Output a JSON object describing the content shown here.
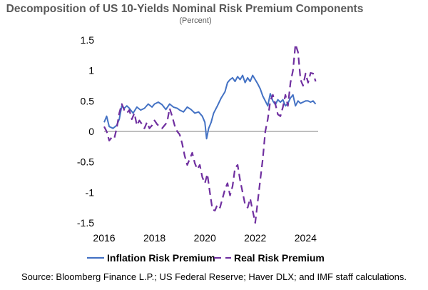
{
  "chart_data": {
    "type": "line",
    "title": "Decomposition of US 10-Yields Nominal Risk Premium Components",
    "subtitle": "(Percent)",
    "xlabel": "",
    "ylabel": "",
    "xlim": [
      2016,
      2024.5
    ],
    "ylim": [
      -1.5,
      1.5
    ],
    "x_ticks": [
      "2016",
      "2018",
      "2020",
      "2022",
      "2024"
    ],
    "y_ticks": [
      "1.5",
      "1",
      "0.5",
      "0",
      "-0.5",
      "-1",
      "-1.5"
    ],
    "grid": false,
    "legend_position": "bottom",
    "series": [
      {
        "name": "Inflation Risk Premium",
        "color": "#4472C4",
        "style": "solid",
        "x": [
          2016.0,
          2016.1,
          2016.2,
          2016.35,
          2016.5,
          2016.6,
          2016.7,
          2016.8,
          2016.9,
          2017.0,
          2017.15,
          2017.3,
          2017.45,
          2017.6,
          2017.75,
          2017.9,
          2018.0,
          2018.15,
          2018.3,
          2018.45,
          2018.6,
          2018.75,
          2018.9,
          2019.0,
          2019.15,
          2019.3,
          2019.45,
          2019.6,
          2019.75,
          2019.9,
          2020.0,
          2020.07,
          2020.15,
          2020.25,
          2020.35,
          2020.5,
          2020.65,
          2020.8,
          2020.9,
          2021.0,
          2021.1,
          2021.2,
          2021.3,
          2021.4,
          2021.5,
          2021.6,
          2021.7,
          2021.8,
          2021.9,
          2022.0,
          2022.1,
          2022.2,
          2022.3,
          2022.4,
          2022.5,
          2022.6,
          2022.7,
          2022.8,
          2022.9,
          2023.0,
          2023.1,
          2023.2,
          2023.3,
          2023.4,
          2023.5,
          2023.6,
          2023.7,
          2023.8,
          2023.9,
          2024.0,
          2024.1,
          2024.2,
          2024.3,
          2024.4
        ],
        "values": [
          0.15,
          0.25,
          0.08,
          0.05,
          0.1,
          0.2,
          0.42,
          0.38,
          0.42,
          0.38,
          0.3,
          0.4,
          0.35,
          0.38,
          0.45,
          0.4,
          0.45,
          0.48,
          0.44,
          0.36,
          0.45,
          0.4,
          0.38,
          0.35,
          0.32,
          0.4,
          0.36,
          0.3,
          0.32,
          0.25,
          0.15,
          -0.12,
          0.05,
          0.15,
          0.3,
          0.42,
          0.55,
          0.65,
          0.8,
          0.85,
          0.88,
          0.82,
          0.9,
          0.85,
          0.92,
          0.8,
          0.88,
          0.82,
          0.92,
          0.85,
          0.78,
          0.7,
          0.58,
          0.5,
          0.42,
          0.62,
          0.5,
          0.44,
          0.52,
          0.48,
          0.52,
          0.42,
          0.46,
          0.55,
          0.6,
          0.42,
          0.5,
          0.46,
          0.48,
          0.5,
          0.5,
          0.48,
          0.5,
          0.45
        ]
      },
      {
        "name": "Real Risk Premium",
        "color": "#7030A0",
        "style": "dashed",
        "x": [
          2016.0,
          2016.1,
          2016.2,
          2016.3,
          2016.4,
          2016.5,
          2016.6,
          2016.7,
          2016.8,
          2016.9,
          2017.0,
          2017.1,
          2017.2,
          2017.3,
          2017.4,
          2017.5,
          2017.6,
          2017.7,
          2017.8,
          2017.9,
          2018.0,
          2018.1,
          2018.2,
          2018.3,
          2018.4,
          2018.5,
          2018.6,
          2018.7,
          2018.8,
          2018.9,
          2019.0,
          2019.1,
          2019.2,
          2019.3,
          2019.4,
          2019.5,
          2019.6,
          2019.7,
          2019.8,
          2019.9,
          2020.0,
          2020.1,
          2020.2,
          2020.3,
          2020.4,
          2020.5,
          2020.6,
          2020.7,
          2020.8,
          2020.9,
          2021.0,
          2021.1,
          2021.2,
          2021.3,
          2021.4,
          2021.5,
          2021.6,
          2021.7,
          2021.8,
          2021.9,
          2022.0,
          2022.1,
          2022.2,
          2022.3,
          2022.4,
          2022.5,
          2022.6,
          2022.7,
          2022.8,
          2022.9,
          2023.0,
          2023.1,
          2023.2,
          2023.3,
          2023.4,
          2023.5,
          2023.6,
          2023.7,
          2023.8,
          2023.9,
          2024.0,
          2024.1,
          2024.2,
          2024.3,
          2024.4
        ],
        "values": [
          0.08,
          0.0,
          -0.15,
          -0.1,
          -0.12,
          0.05,
          0.3,
          0.45,
          0.35,
          0.3,
          0.35,
          0.2,
          0.3,
          0.1,
          0.18,
          0.12,
          0.05,
          0.15,
          0.05,
          0.1,
          0.18,
          0.12,
          0.08,
          0.05,
          0.1,
          0.15,
          0.38,
          0.25,
          0.1,
          0.0,
          -0.05,
          -0.2,
          -0.4,
          -0.55,
          -0.45,
          -0.35,
          -0.52,
          -0.62,
          -0.55,
          -0.75,
          -0.85,
          -0.7,
          -1.0,
          -1.28,
          -1.3,
          -1.2,
          -1.25,
          -1.1,
          -0.95,
          -0.85,
          -1.05,
          -0.9,
          -0.6,
          -0.55,
          -0.8,
          -1.0,
          -1.2,
          -1.25,
          -1.1,
          -1.3,
          -1.5,
          -1.15,
          -0.8,
          -0.45,
          0.0,
          0.2,
          0.5,
          0.6,
          0.45,
          0.28,
          0.25,
          0.4,
          0.6,
          0.42,
          0.8,
          1.0,
          1.43,
          1.3,
          0.85,
          0.75,
          0.95,
          0.8,
          0.96,
          0.95,
          0.82
        ]
      }
    ]
  },
  "source_note": "Source: Bloomberg Finance L.P.; US Federal Reserve; Haver DLX; and IMF staff calculations."
}
